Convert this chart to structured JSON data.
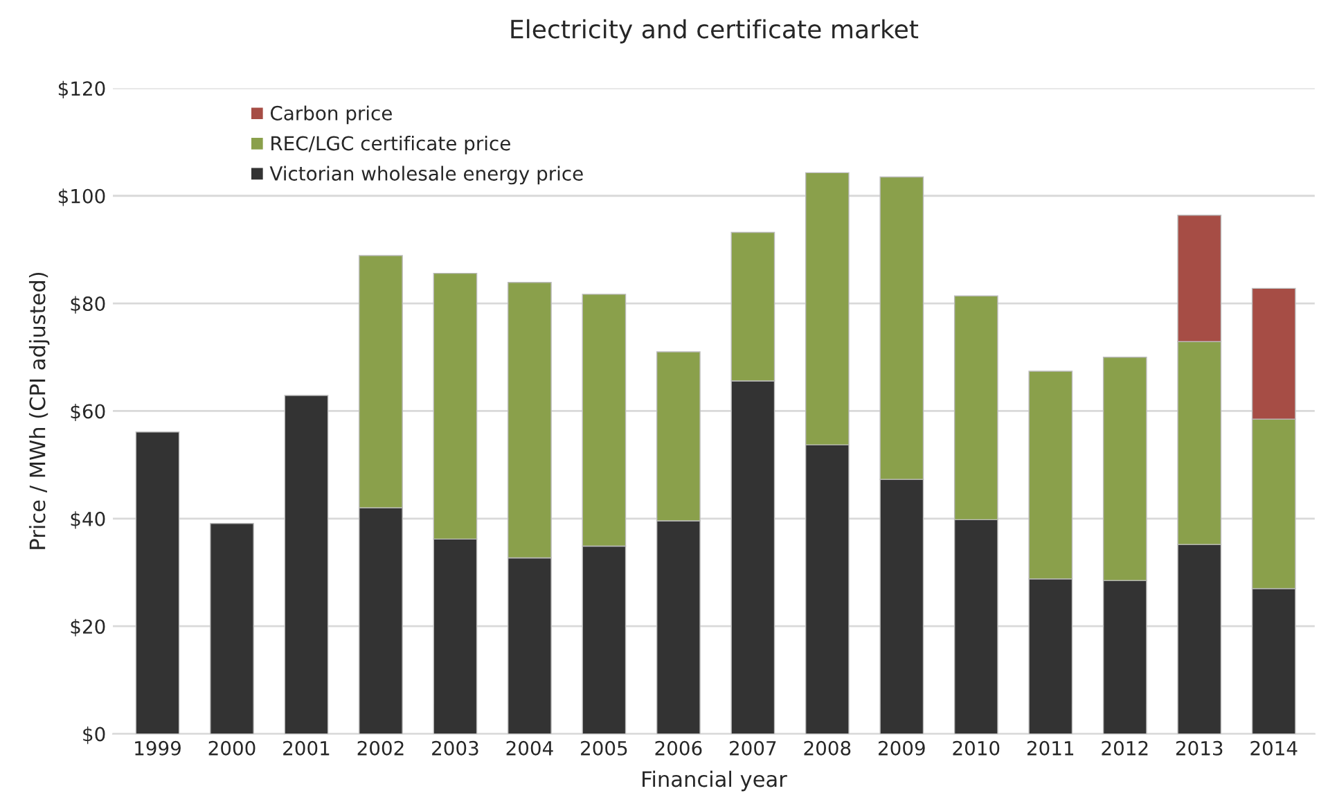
{
  "chart_data": {
    "type": "bar",
    "title": "Electricity and certificate market",
    "xlabel": "Financial year",
    "ylabel": "Price / MWh (CPI adjusted)",
    "categories": [
      "1999",
      "2000",
      "2001",
      "2002",
      "2003",
      "2004",
      "2005",
      "2006",
      "2007",
      "2008",
      "2009",
      "2010",
      "2011",
      "2012",
      "2013",
      "2014"
    ],
    "stacked": true,
    "series": [
      {
        "name": "Victorian wholesale energy price",
        "color": "#333333",
        "values": [
          56.1,
          39.1,
          62.9,
          42.0,
          36.2,
          32.7,
          34.9,
          39.6,
          65.6,
          53.7,
          47.3,
          39.8,
          28.8,
          28.5,
          35.2,
          27.0
        ]
      },
      {
        "name": "REC/LGC certificate price",
        "color": "#8aa04b",
        "values": [
          null,
          null,
          null,
          46.9,
          49.4,
          51.2,
          46.8,
          31.4,
          27.6,
          50.6,
          56.2,
          41.6,
          38.6,
          41.5,
          37.7,
          31.5
        ]
      },
      {
        "name": "Carbon price",
        "color": "#a64d45",
        "values": [
          null,
          null,
          null,
          null,
          null,
          null,
          null,
          null,
          null,
          null,
          null,
          null,
          null,
          null,
          23.5,
          24.3
        ]
      }
    ],
    "ylim": [
      0,
      120
    ],
    "yticks": [
      {
        "value": 0,
        "label": "$0"
      },
      {
        "value": 20,
        "label": "$20"
      },
      {
        "value": 40,
        "label": "$40"
      },
      {
        "value": 60,
        "label": "$60"
      },
      {
        "value": 80,
        "label": "$80"
      },
      {
        "value": 100,
        "label": "$100"
      },
      {
        "value": 120,
        "label": "$120"
      }
    ],
    "grid": "y",
    "legend": "top left"
  }
}
